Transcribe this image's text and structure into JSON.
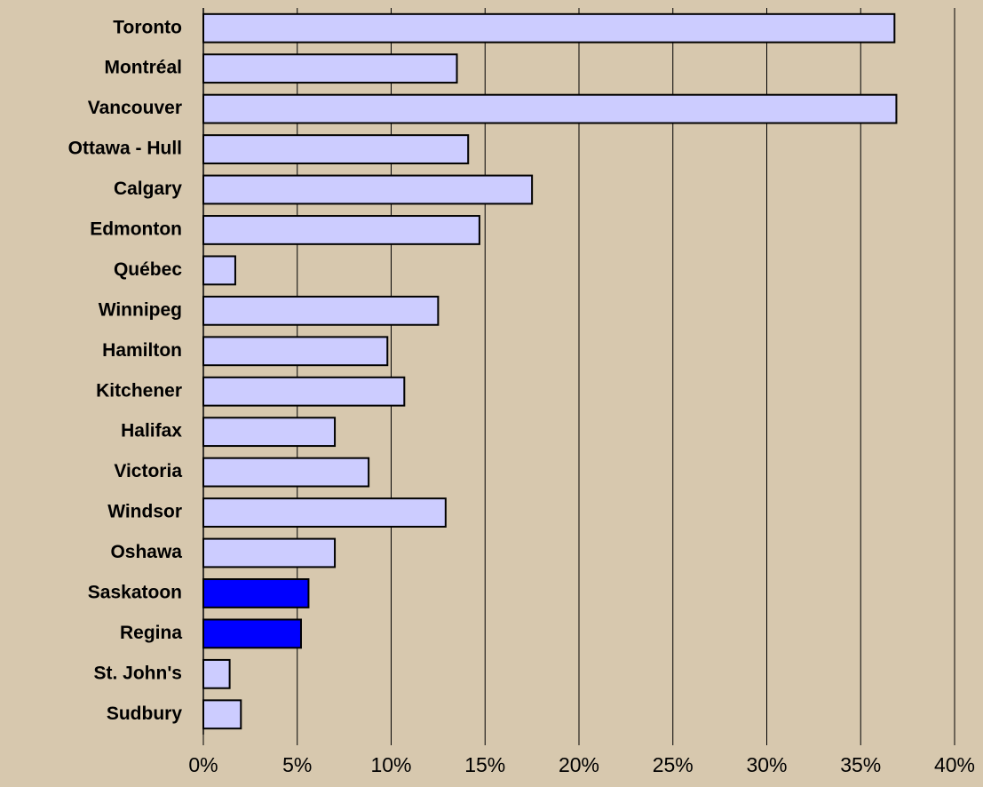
{
  "chart_data": {
    "type": "hbar",
    "categories": [
      "Toronto",
      "Montréal",
      "Vancouver",
      "Ottawa - Hull",
      "Calgary",
      "Edmonton",
      "Québec",
      "Winnipeg",
      "Hamilton",
      "Kitchener",
      "Halifax",
      "Victoria",
      "Windsor",
      "Oshawa",
      "Saskatoon",
      "Regina",
      "St. John's",
      "Sudbury"
    ],
    "values": [
      36.8,
      13.5,
      36.9,
      14.1,
      17.5,
      14.7,
      1.7,
      12.5,
      9.8,
      10.7,
      7.0,
      8.8,
      12.9,
      7.0,
      5.6,
      5.2,
      1.4,
      2.0
    ],
    "colors": [
      "#ccccff",
      "#ccccff",
      "#ccccff",
      "#ccccff",
      "#ccccff",
      "#ccccff",
      "#ccccff",
      "#ccccff",
      "#ccccff",
      "#ccccff",
      "#ccccff",
      "#ccccff",
      "#ccccff",
      "#ccccff",
      "#0000ff",
      "#0000ff",
      "#ccccff",
      "#ccccff"
    ],
    "xlim": [
      0,
      40
    ],
    "xticks": [
      {
        "value": 0,
        "label": "0%"
      },
      {
        "value": 5,
        "label": "5%"
      },
      {
        "value": 10,
        "label": "10%"
      },
      {
        "value": 15,
        "label": "15%"
      },
      {
        "value": 20,
        "label": "20%"
      },
      {
        "value": 25,
        "label": "25%"
      },
      {
        "value": 30,
        "label": "30%"
      },
      {
        "value": 35,
        "label": "35%"
      },
      {
        "value": 40,
        "label": "40%"
      }
    ],
    "grid": true
  }
}
